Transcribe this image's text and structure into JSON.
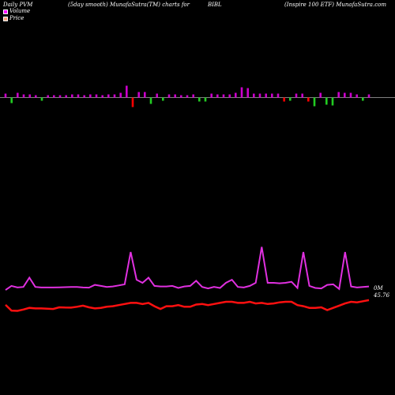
{
  "header": {
    "left": "Daily PVM",
    "center": "(5day smooth) MunafaSutra(TM) charts for",
    "symbol": "BIBL",
    "right": "(Inspire   100  ETF) MunafaSutra.com"
  },
  "legend": [
    {
      "label": "Volume",
      "color": "#ff00ff"
    },
    {
      "label": "Price",
      "color": "#ffa07a"
    }
  ],
  "colors": {
    "volume_line": "#e030e0",
    "price_line": "#ff1010",
    "bar_up": "#cc00cc",
    "bar_down_red": "#ff0000",
    "bar_down_green": "#22cc22",
    "baseline": "#ffffff"
  },
  "chart_data": {
    "type": "line",
    "end_labels": {
      "volume": "0M",
      "price": "45.76"
    },
    "pvm_bars": {
      "colors": [
        "m",
        "g",
        "m",
        "m",
        "m",
        "m",
        "g",
        "m",
        "m",
        "m",
        "m",
        "m",
        "m",
        "m",
        "m",
        "m",
        "m",
        "m",
        "m",
        "m",
        "m",
        "r",
        "m",
        "m",
        "g",
        "m",
        "g",
        "m",
        "m",
        "m",
        "m",
        "m",
        "g",
        "g",
        "m",
        "m",
        "m",
        "m",
        "m",
        "m",
        "m",
        "m",
        "m",
        "m",
        "m",
        "m",
        "r",
        "g",
        "m",
        "m",
        "r",
        "g",
        "m",
        "g",
        "g",
        "m",
        "m",
        "m",
        "m",
        "g",
        "m"
      ],
      "heights": [
        5,
        7,
        6,
        4,
        4,
        3,
        4,
        3,
        3,
        3,
        3,
        4,
        4,
        3,
        4,
        4,
        3,
        4,
        4,
        6,
        15,
        12,
        7,
        7,
        8,
        5,
        4,
        4,
        4,
        3,
        3,
        4,
        5,
        5,
        5,
        4,
        4,
        4,
        6,
        13,
        12,
        5,
        5,
        5,
        5,
        5,
        5,
        4,
        5,
        5,
        5,
        11,
        6,
        9,
        10,
        7,
        6,
        6,
        4,
        4,
        4
      ],
      "signs": [
        1,
        -1,
        1,
        1,
        1,
        1,
        -1,
        1,
        1,
        1,
        1,
        1,
        1,
        1,
        1,
        1,
        1,
        1,
        1,
        1,
        1,
        -1,
        1,
        1,
        -1,
        1,
        -1,
        1,
        1,
        1,
        1,
        1,
        -1,
        -1,
        1,
        1,
        1,
        1,
        1,
        1,
        1,
        1,
        1,
        1,
        1,
        1,
        -1,
        -1,
        1,
        1,
        -1,
        -1,
        1,
        -1,
        -1,
        1,
        1,
        1,
        1,
        -1,
        1
      ]
    },
    "series": [
      {
        "values": [
          3.0,
          7.0,
          5.5,
          6.0,
          15.0,
          6.0,
          5.5,
          5.5,
          5.5,
          5.6,
          5.8,
          6.0,
          5.9,
          5.5,
          5.3,
          8.0,
          7.0,
          6.0,
          6.5,
          7.5,
          8.5,
          40.0,
          13.0,
          10.0,
          15.0,
          7.0,
          6.5,
          6.5,
          7.0,
          5.0,
          6.5,
          7.0,
          12.0,
          6.0,
          4.5,
          6.0,
          5.0,
          10.0,
          13.0,
          6.0,
          5.5,
          7.0,
          10.0,
          45.0,
          10.0,
          10.0,
          9.5,
          10.0,
          11.0,
          5.0,
          40.0,
          7.0,
          5.0,
          4.5,
          8.0,
          8.5,
          4.0,
          40.0,
          6.5,
          5.5,
          6.0,
          6.5
        ]
      },
      {
        "values": [
          2.2,
          -3.0,
          -3.2,
          -2.0,
          -0.5,
          -1.0,
          -1.0,
          -1.2,
          -1.5,
          0.0,
          -0.2,
          -0.3,
          0.5,
          1.5,
          0.0,
          -1.0,
          -0.5,
          0.5,
          1.0,
          2.0,
          3.0,
          4.0,
          4.0,
          3.0,
          4.0,
          1.0,
          -1.5,
          1.0,
          1.0,
          2.0,
          0.5,
          0.5,
          2.5,
          3.0,
          2.0,
          3.0,
          4.0,
          5.0,
          5.0,
          4.0,
          4.0,
          5.0,
          3.5,
          4.0,
          3.0,
          3.5,
          4.5,
          5.0,
          5.0,
          2.0,
          1.0,
          -0.5,
          -0.5,
          0.0,
          -2.5,
          -0.5,
          1.5,
          3.5,
          5.0,
          4.5,
          5.5,
          6.5
        ]
      }
    ]
  }
}
